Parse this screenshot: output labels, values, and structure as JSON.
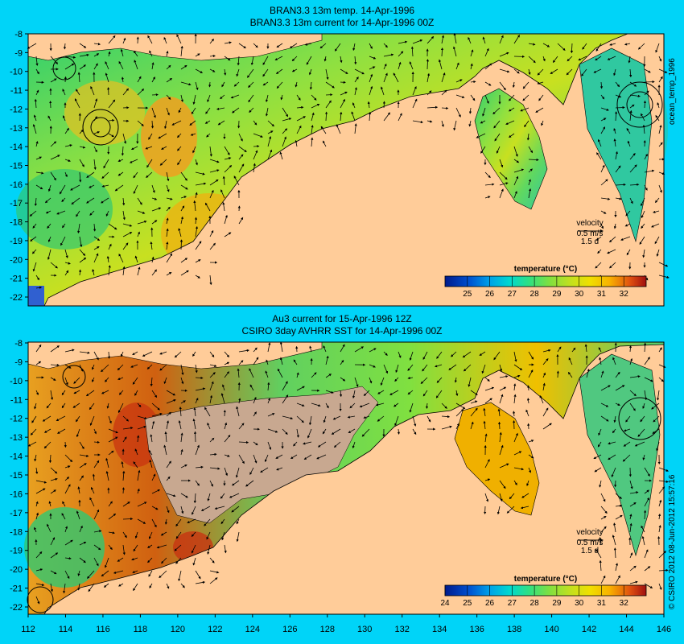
{
  "panel_top": {
    "title_line1": "BRAN3.3 13m temp. 14-Apr-1996",
    "title_line2": "BRAN3.3 13m current for 14-Apr-1996 00Z",
    "side_label": "ocean_temp_1996",
    "velocity_label": "velocity",
    "velocity_scale": "0.5 m/s",
    "velocity_days": "1.5 d",
    "colorbar_title": "temperature (°C)",
    "colorbar_ticks": [
      "25",
      "26",
      "27",
      "28",
      "29",
      "30",
      "31",
      "32"
    ]
  },
  "panel_bottom": {
    "title_line1": "Au3 current for 15-Apr-1996 12Z",
    "title_line2": "CSIRO 3day AVHRR SST for 14-Apr-1996 00Z",
    "side_label": "© CSIRO 2012  08-Jun-2012 15:57:16",
    "velocity_label": "velocity",
    "velocity_scale": "0.5 m/s",
    "velocity_days": "1.5 d",
    "colorbar_title": "temperature (°C)",
    "colorbar_ticks": [
      "24",
      "25",
      "26",
      "27",
      "28",
      "29",
      "30",
      "31",
      "32"
    ]
  },
  "axes": {
    "y_ticks": [
      "-8",
      "-9",
      "-10",
      "-11",
      "-12",
      "-13",
      "-14",
      "-15",
      "-16",
      "-17",
      "-18",
      "-19",
      "-20",
      "-21",
      "-22"
    ],
    "x_ticks": [
      "112",
      "114",
      "116",
      "118",
      "120",
      "122",
      "124",
      "126",
      "128",
      "130",
      "132",
      "134",
      "136",
      "138",
      "140",
      "142",
      "144",
      "146"
    ]
  },
  "colors": {
    "background": "#00d4f8",
    "land": "#ffcc99",
    "cloud_mask": "#c8a890",
    "colorbar": [
      "#001a8c",
      "#0050d0",
      "#00a0e8",
      "#00d8d0",
      "#30e080",
      "#80e040",
      "#c0e020",
      "#f0e000",
      "#f8b000",
      "#f07010",
      "#d83010",
      "#a01010"
    ]
  }
}
